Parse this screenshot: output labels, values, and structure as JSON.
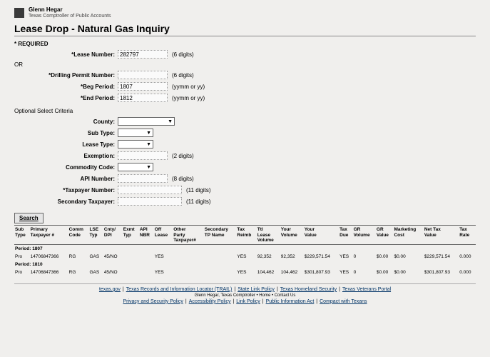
{
  "header": {
    "name": "Glenn Hegar",
    "subtitle": "Texas Comptroller of Public Accounts"
  },
  "page_title": "Lease Drop - Natural Gas Inquiry",
  "required_label": "* REQUIRED",
  "or_label": "OR",
  "optional_label": "Optional Select Criteria",
  "fields": {
    "lease_number": {
      "label": "*Lease Number:",
      "value": "282797",
      "hint": "(6 digits)"
    },
    "drilling_permit": {
      "label": "*Drilling Permit Number:",
      "value": "",
      "hint": "(6 digits)"
    },
    "beg_period": {
      "label": "*Beg Period:",
      "value": "1807",
      "hint": "(yymm or yy)"
    },
    "end_period": {
      "label": "*End Period:",
      "value": "1812",
      "hint": "(yymm or yy)"
    },
    "county": {
      "label": "County:"
    },
    "sub_type": {
      "label": "Sub Type:"
    },
    "lease_type": {
      "label": "Lease Type:"
    },
    "exemption": {
      "label": "Exemption:",
      "hint": "(2 digits)"
    },
    "commodity_code": {
      "label": "Commodity Code:"
    },
    "api_number": {
      "label": "API Number:",
      "hint": "(8 digits)"
    },
    "taxpayer_number": {
      "label": "*Taxpayer Number:",
      "hint": "(11 digits)"
    },
    "secondary_taxpayer": {
      "label": "Secondary Taxpayer:",
      "hint": "(11 digits)"
    }
  },
  "search_button": "Search",
  "table": {
    "columns": [
      "Sub\nType",
      "Primary\nTaxpayer #",
      "Comm\nCode",
      "LSE\nTyp",
      "Cnty/\nDPI",
      "Exmt\nTyp",
      "API\nNBR",
      "Off\nLease",
      "Other\nParty\nTaxpayer#",
      "Secondary\nTP Name",
      "Tax\nReimb",
      "Ttl\nLease\nVolume",
      "Your\nVolume",
      "Your\nValue",
      "Tax\nDue",
      "GR\nVolume",
      "GR\nValue",
      "Marketing\nCost",
      "Net Tax\nValue",
      "Tax\nRate"
    ],
    "groups": [
      {
        "period": "Period: 1807",
        "row": {
          "sub": "Pro",
          "tp": "14706847366",
          "comm": "RG",
          "lse": "GAS",
          "cnty": "45/NO",
          "exmt": "",
          "api": "",
          "off": "YES",
          "other": "",
          "sec": "",
          "reimb": "YES",
          "ttl": "92,352",
          "yvol": "92,352",
          "yval": "$229,571.54",
          "tdue": "YES",
          "grv": "0",
          "grval": "$0.00",
          "mkt": "$0.00",
          "net": "$229,571.54",
          "rate": "0.000"
        }
      },
      {
        "period": "Period: 1810",
        "row": {
          "sub": "Pro",
          "tp": "14706847366",
          "comm": "RG",
          "lse": "GAS",
          "cnty": "45/NO",
          "exmt": "",
          "api": "",
          "off": "YES",
          "other": "",
          "sec": "",
          "reimb": "YES",
          "ttl": "104,462",
          "yvol": "104,462",
          "yval": "$301,807.93",
          "tdue": "YES",
          "grv": "0",
          "grval": "$0.00",
          "mkt": "$0.00",
          "net": "$301,807.93",
          "rate": "0.000"
        }
      }
    ]
  },
  "footer": {
    "line1": [
      "texas.gov",
      "Texas Records and Information Locator (TRAIL)",
      "State Link Policy",
      "Texas Homeland Security",
      "Texas Veterans Portal"
    ],
    "line2": "Glenn Hegar, Texas Comptroller  •  Home  •  Contact Us",
    "line3": [
      "Privacy and Security Policy",
      "Accessibility Policy",
      "Link Policy",
      "Public Information Act",
      "Compact with Texans"
    ]
  }
}
